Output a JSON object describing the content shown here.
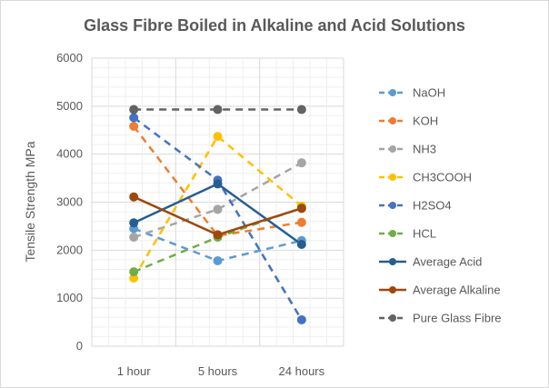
{
  "chart_data": {
    "type": "line",
    "title": "Glass Fibre Boiled in Alkaline and Acid Solutions",
    "xlabel": "",
    "ylabel": "Tensile Strength MPa",
    "categories": [
      "1 hour",
      "5 hours",
      "24 hours"
    ],
    "ylim": [
      0,
      6000
    ],
    "yticks": [
      0,
      1000,
      2000,
      3000,
      4000,
      5000,
      6000
    ],
    "grid": true,
    "legend_position": "right",
    "series": [
      {
        "name": "NaOH",
        "values": [
          2450,
          1780,
          2200
        ],
        "color": "#5b9bd5",
        "dashed": true
      },
      {
        "name": "KOH",
        "values": [
          4580,
          2300,
          2580
        ],
        "color": "#ed7d31",
        "dashed": true
      },
      {
        "name": "NH3",
        "values": [
          2270,
          2850,
          3820
        ],
        "color": "#a5a5a5",
        "dashed": true
      },
      {
        "name": "CH3COOH",
        "values": [
          1420,
          4370,
          2920
        ],
        "color": "#ffc000",
        "dashed": true
      },
      {
        "name": "H2SO4",
        "values": [
          4760,
          3460,
          550
        ],
        "color": "#4472c4",
        "dashed": true
      },
      {
        "name": "HCL",
        "values": [
          1550,
          2270,
          2880
        ],
        "color": "#70ad47",
        "dashed": true
      },
      {
        "name": "Average Acid",
        "values": [
          2570,
          3380,
          2120
        ],
        "color": "#255e91",
        "dashed": false
      },
      {
        "name": "Average Alkaline",
        "values": [
          3110,
          2320,
          2870
        ],
        "color": "#9e480e",
        "dashed": false
      },
      {
        "name": "Pure Glass Fibre",
        "values": [
          4930,
          4930,
          4930
        ],
        "color": "#636363",
        "dashed": true
      }
    ]
  }
}
